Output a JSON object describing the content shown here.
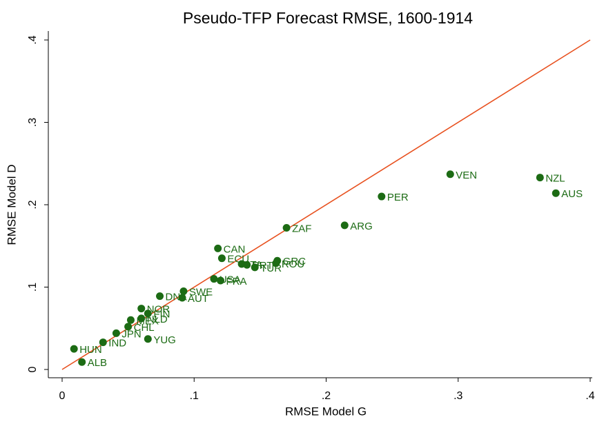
{
  "chart_data": {
    "type": "scatter",
    "title": "Pseudo-TFP Forecast RMSE, 1600-1914",
    "x_label": "RMSE Model G",
    "y_label": "RMSE Model D",
    "color": "#1c6b14",
    "diagonal_color": "#e8501e",
    "xlim": [
      0,
      0.4
    ],
    "ylim": [
      0,
      0.4
    ],
    "xticks": [
      0,
      {
        "value": 0.1,
        "label": ".1"
      },
      {
        "value": 0.2,
        "label": ".2"
      },
      {
        "value": 0.3,
        "label": ".3"
      },
      {
        "value": 0.4,
        "label": ".4"
      }
    ],
    "yticks": [
      0,
      {
        "value": 0.1,
        "label": ".1"
      },
      {
        "value": 0.2,
        "label": ".2"
      },
      {
        "value": 0.3,
        "label": ".3"
      },
      {
        "value": 0.4,
        "label": ".4"
      }
    ],
    "labels": [
      "HUN",
      "ALB",
      "IND",
      "JPN",
      "YUG",
      "VEN",
      "NZL",
      "AUS",
      "PER",
      "ARG",
      "ZAF",
      "CAN",
      "ECU",
      "GRC",
      "ROU",
      "ITA",
      "PRT",
      "TUR",
      "DNK",
      "AUT",
      "SWE",
      "USA",
      "FRA",
      "NOR",
      "FIN",
      "NLD",
      "MEX",
      "CHL"
    ],
    "x": [
      0.009,
      0.015,
      0.031,
      0.041,
      0.065,
      0.294,
      0.362,
      0.374,
      0.242,
      0.214,
      0.17,
      0.118,
      0.121,
      0.163,
      0.162,
      0.136,
      0.14,
      0.146,
      0.074,
      0.091,
      0.092,
      0.115,
      0.12,
      0.06,
      0.065,
      0.06,
      0.052,
      0.05
    ],
    "y": [
      0.025,
      0.009,
      0.033,
      0.044,
      0.037,
      0.237,
      0.233,
      0.214,
      0.21,
      0.175,
      0.172,
      0.147,
      0.135,
      0.132,
      0.129,
      0.128,
      0.127,
      0.124,
      0.089,
      0.087,
      0.095,
      0.11,
      0.108,
      0.074,
      0.068,
      0.062,
      0.06,
      0.052
    ]
  }
}
